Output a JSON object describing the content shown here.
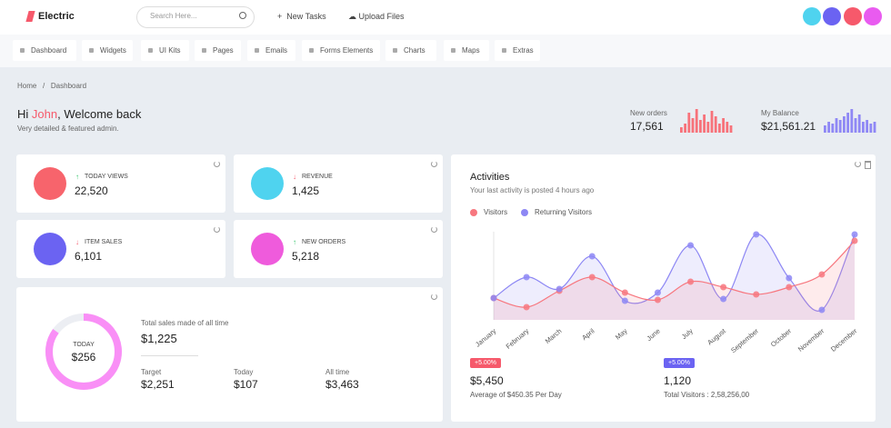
{
  "header": {
    "brand": "Electric",
    "search_placeholder": "Search Here...",
    "actions": [
      "New Tasks",
      "Upload Files"
    ],
    "icon_colors": [
      "#4fd3ef",
      "#6b63f2",
      "#f6596b",
      "#e95bf0"
    ]
  },
  "nav": [
    "Dashboard",
    "Widgets",
    "UI Kits",
    "Pages",
    "Emails",
    "Forms Elements",
    "Charts",
    "Maps",
    "Extras"
  ],
  "breadcrumb": [
    "Home",
    "Dashboard"
  ],
  "welcome": {
    "greeting_start": "Hi ",
    "name": "John",
    "greeting_end": ", Welcome back",
    "subtitle": "Very detailed & featured admin."
  },
  "summary": [
    {
      "label": "New orders",
      "value": "17,561",
      "color": "#f7727a",
      "bars": [
        6,
        10,
        22,
        16,
        26,
        14,
        20,
        12,
        24,
        18,
        10,
        16,
        12,
        8
      ]
    },
    {
      "label": "My Balance",
      "value": "$21,561.21",
      "color": "#8f88f5",
      "bars": [
        8,
        12,
        10,
        16,
        14,
        18,
        22,
        26,
        16,
        20,
        12,
        14,
        10,
        12
      ]
    }
  ],
  "cards": [
    {
      "label": "TODAY VIEWS",
      "value": "22,520",
      "trend": "up",
      "color": "#f7646c"
    },
    {
      "label": "REVENUE",
      "value": "1,425",
      "trend": "down",
      "color": "#4fd3ef"
    },
    {
      "label": "ITEM SALES",
      "value": "6,101",
      "trend": "down",
      "color": "#6b63f2"
    },
    {
      "label": "NEW ORDERS",
      "value": "5,218",
      "trend": "up",
      "color": "#ef5bdc"
    }
  ],
  "sales": {
    "ring_label": "TODAY",
    "ring_value_text": "$256",
    "ring_percent": 85,
    "ring_color": "#f98ff6",
    "total_label": "Total sales made of all time",
    "total_value": "$1,225",
    "stats": [
      {
        "label": "Target",
        "value": "$2,251"
      },
      {
        "label": "Today",
        "value": "$107"
      },
      {
        "label": "All time",
        "value": "$3,463"
      }
    ]
  },
  "activities": {
    "title": "Activities",
    "subtitle": "Your last activity is posted 4 hours ago",
    "chart": {
      "type": "line",
      "categories": [
        "January",
        "February",
        "March",
        "April",
        "May",
        "June",
        "July",
        "August",
        "September",
        "October",
        "November",
        "December"
      ],
      "ylim": [
        0,
        100
      ],
      "series": [
        {
          "name": "Visitors",
          "color": "#f7777f",
          "values": [
            27,
            17,
            35,
            50,
            33,
            25,
            45,
            39,
            31,
            39,
            53,
            90
          ]
        },
        {
          "name": "Returning Visitors",
          "color": "#8d87f4",
          "values": [
            27,
            50,
            37,
            73,
            24,
            33,
            85,
            26,
            97,
            49,
            14,
            97
          ]
        }
      ]
    },
    "stats": [
      {
        "badge": "+5.00%",
        "badge_color": "#f6596b",
        "value": "$5,450",
        "caption": "Average of $450.35 Per Day"
      },
      {
        "badge": "+5.00%",
        "badge_color": "#6b63f2",
        "value": "1,120",
        "caption": "Total Visitors : 2,58,256,00"
      }
    ]
  }
}
